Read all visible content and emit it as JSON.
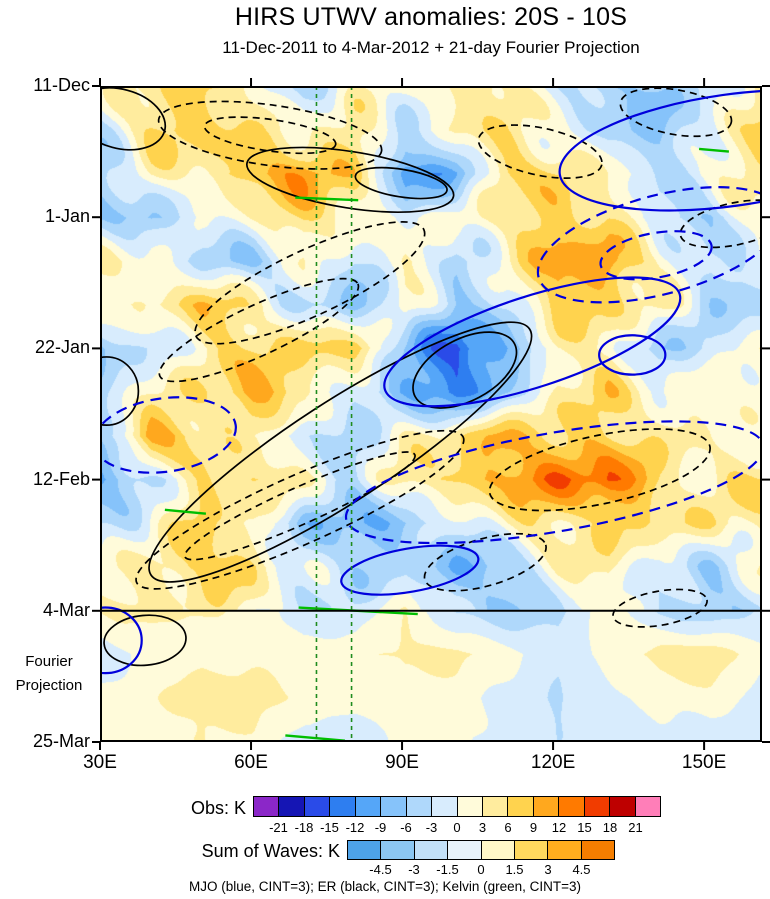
{
  "title": "HIRS UTWV anomalies: 20S - 10S",
  "subtitle": "11-Dec-2011 to 4-Mar-2012 + 21-day Fourier Projection",
  "caption": "MJO (blue, CINT=3); ER (black, CINT=3); Kelvin (green, CINT=3)",
  "axes": {
    "x": {
      "range_degE": [
        30,
        161.5
      ],
      "ticks": [
        {
          "value": 30,
          "label": "30E"
        },
        {
          "value": 60,
          "label": "60E"
        },
        {
          "value": 90,
          "label": "90E"
        },
        {
          "value": 120,
          "label": "120E"
        },
        {
          "value": 150,
          "label": "150E"
        }
      ]
    },
    "y": {
      "range_days": [
        0,
        105
      ],
      "ticks": [
        {
          "day": 0,
          "label": "11-Dec"
        },
        {
          "day": 21,
          "label": "1-Jan"
        },
        {
          "day": 42,
          "label": "22-Jan"
        },
        {
          "day": 63,
          "label": "12-Feb"
        },
        {
          "day": 84,
          "label": "4-Mar"
        },
        {
          "day": 105,
          "label": "25-Mar"
        }
      ]
    },
    "projection_label_lines": [
      "Fourier",
      "Projection"
    ]
  },
  "colorbars": {
    "obs": {
      "label": "Obs: K",
      "tick_labels": [
        "-21",
        "-18",
        "-15",
        "-12",
        "-9",
        "-6",
        "-3",
        "0",
        "3",
        "6",
        "9",
        "12",
        "15",
        "18",
        "21"
      ],
      "colors": [
        "#8B27C8",
        "#1515B4",
        "#2A4BE8",
        "#2E7EF0",
        "#55A6F8",
        "#86C3FA",
        "#AFD8FB",
        "#D8ECFD",
        "#FFFBDA",
        "#FFEC9E",
        "#FFD34E",
        "#FFA81E",
        "#FF7A00",
        "#F13C00",
        "#BE0000",
        "#FF7EB8"
      ]
    },
    "waves": {
      "label": "Sum of Waves: K",
      "tick_labels": [
        "-4.5",
        "-3",
        "-1.5",
        "0",
        "1.5",
        "3",
        "4.5"
      ],
      "colors": [
        "#4DA2E8",
        "#8CC7F2",
        "#C2E0F8",
        "#E8F3FB",
        "#FFF7C8",
        "#FFD95E",
        "#FFAE1E",
        "#F57E00"
      ]
    }
  },
  "chart_data": {
    "type": "heatmap",
    "units": "K",
    "fill_levels_step_K": 3,
    "fill_range_K": [
      -21,
      21
    ],
    "observed_through_day": 84,
    "x_lons_degE": [
      30,
      40,
      50,
      60,
      70,
      80,
      90,
      100,
      110,
      120,
      130,
      140,
      150,
      160
    ],
    "y_days_from_11Dec2011": [
      0,
      7,
      14,
      21,
      28,
      35,
      42,
      49,
      56,
      63,
      70,
      77,
      84,
      91,
      98,
      105
    ],
    "values_K": [
      [
        1,
        4,
        8,
        2,
        -4,
        0,
        2,
        3,
        6,
        -2,
        -7,
        -5,
        -4,
        7
      ],
      [
        -3,
        6,
        9,
        4,
        2,
        6,
        -4,
        4,
        4,
        2,
        -5,
        -6,
        -2,
        8
      ],
      [
        -5,
        2,
        4,
        9,
        11,
        8,
        -13,
        -8,
        6,
        7,
        2,
        -4,
        2,
        4
      ],
      [
        -4,
        -6,
        -2,
        3,
        6,
        4,
        -2,
        2,
        4,
        8,
        6,
        -4,
        -5,
        2
      ],
      [
        2,
        3,
        -5,
        -6,
        2,
        -4,
        4,
        -5,
        3,
        10,
        12,
        2,
        -3,
        -2
      ],
      [
        3,
        2,
        9,
        4,
        -3,
        -8,
        2,
        -6,
        -2,
        8,
        7,
        3,
        -4,
        -4
      ],
      [
        -8,
        -2,
        3,
        6,
        7,
        8,
        -6,
        -18,
        -8,
        2,
        4,
        -6,
        -4,
        3
      ],
      [
        -4,
        2,
        6,
        10,
        6,
        -4,
        -8,
        -14,
        -6,
        4,
        6,
        2,
        2,
        4
      ],
      [
        -4,
        10,
        6,
        2,
        -2,
        -4,
        2,
        6,
        8,
        8,
        6,
        5,
        2,
        -2
      ],
      [
        -9,
        -4,
        5,
        8,
        2,
        -3,
        4,
        8,
        10,
        14,
        15,
        6,
        3,
        7
      ],
      [
        -5,
        2,
        6,
        3,
        -7,
        -8,
        -7,
        -2,
        3,
        5,
        7,
        4,
        6,
        3
      ],
      [
        2,
        4,
        8,
        6,
        -2,
        -5,
        -3,
        -9,
        -6,
        2,
        5,
        -2,
        -5,
        2
      ],
      [
        3,
        4,
        3,
        2,
        -2,
        -3,
        3,
        -4,
        -5,
        -4,
        2,
        -4,
        -6,
        -2
      ],
      [
        -2,
        1,
        2,
        1,
        1,
        2,
        4,
        4,
        1,
        -2,
        1,
        5,
        5,
        1
      ],
      [
        1,
        2,
        5,
        5,
        2,
        1,
        2,
        1,
        -1,
        -3,
        -1,
        1,
        2,
        -1
      ],
      [
        1,
        1,
        3,
        2,
        -2,
        -2,
        1,
        1,
        -2,
        -3,
        -1,
        -1,
        -2,
        -3
      ]
    ],
    "overlays": {
      "wave_colors": {
        "MJO": "#0000DC",
        "ER": "#000000",
        "Kelvin": "#00BE00",
        "kelvin_band_line": "#1E8C1E"
      },
      "projection_divider_fy": 0.8,
      "kelvin_band_vlines_fx": [
        0.327,
        0.38
      ],
      "contours": [
        {
          "wave": "ER",
          "style": "solid",
          "cx": 0.378,
          "cy": 0.143,
          "rx": 0.158,
          "ry": 0.043,
          "rot": 9
        },
        {
          "wave": "ER",
          "style": "solid",
          "cx": 0.455,
          "cy": 0.148,
          "rx": 0.07,
          "ry": 0.021,
          "rot": 9
        },
        {
          "wave": "ER",
          "style": "solid",
          "cx": 0.363,
          "cy": 0.558,
          "rx": 0.341,
          "ry": 0.076,
          "rot": -33
        },
        {
          "wave": "ER",
          "style": "solid",
          "cx": 0.551,
          "cy": 0.433,
          "rx": 0.085,
          "ry": 0.047,
          "rot": -28
        },
        {
          "wave": "ER",
          "style": "solid",
          "cx": 0.01,
          "cy": 0.465,
          "rx": 0.048,
          "ry": 0.052,
          "rot": 0
        },
        {
          "wave": "ER",
          "style": "solid",
          "cx": 0.068,
          "cy": 0.845,
          "rx": 0.062,
          "ry": 0.038,
          "rot": -5
        },
        {
          "wave": "ER",
          "style": "solid",
          "cx": 0.03,
          "cy": 0.05,
          "rx": 0.07,
          "ry": 0.045,
          "rot": 15
        },
        {
          "wave": "ER",
          "style": "dashed",
          "cx": 0.257,
          "cy": 0.075,
          "rx": 0.17,
          "ry": 0.046,
          "rot": 8
        },
        {
          "wave": "ER",
          "style": "dashed",
          "cx": 0.257,
          "cy": 0.075,
          "rx": 0.1,
          "ry": 0.024,
          "rot": 8
        },
        {
          "wave": "ER",
          "style": "dashed",
          "cx": 0.665,
          "cy": 0.1,
          "rx": 0.095,
          "ry": 0.036,
          "rot": 12
        },
        {
          "wave": "ER",
          "style": "dashed",
          "cx": 0.317,
          "cy": 0.3,
          "rx": 0.19,
          "ry": 0.05,
          "rot": -25
        },
        {
          "wave": "ER",
          "style": "dashed",
          "cx": 0.24,
          "cy": 0.372,
          "rx": 0.165,
          "ry": 0.038,
          "rot": -25
        },
        {
          "wave": "ER",
          "style": "dashed",
          "cx": 0.302,
          "cy": 0.646,
          "rx": 0.27,
          "ry": 0.052,
          "rot": -24
        },
        {
          "wave": "ER",
          "style": "dashed",
          "cx": 0.302,
          "cy": 0.64,
          "rx": 0.19,
          "ry": 0.028,
          "rot": -24
        },
        {
          "wave": "ER",
          "style": "dashed",
          "cx": 0.755,
          "cy": 0.585,
          "rx": 0.17,
          "ry": 0.052,
          "rot": -12
        },
        {
          "wave": "ER",
          "style": "dashed",
          "cx": 0.582,
          "cy": 0.726,
          "rx": 0.095,
          "ry": 0.036,
          "rot": -16
        },
        {
          "wave": "ER",
          "style": "dashed",
          "cx": 0.846,
          "cy": 0.796,
          "rx": 0.072,
          "ry": 0.026,
          "rot": -10
        },
        {
          "wave": "ER",
          "style": "dashed",
          "cx": 0.96,
          "cy": 0.21,
          "rx": 0.085,
          "ry": 0.032,
          "rot": -12
        },
        {
          "wave": "ER",
          "style": "dashed",
          "cx": 0.87,
          "cy": 0.04,
          "rx": 0.085,
          "ry": 0.034,
          "rot": 10
        },
        {
          "wave": "MJO",
          "style": "solid",
          "cx": 0.952,
          "cy": 0.098,
          "rx": 0.26,
          "ry": 0.085,
          "rot": -8
        },
        {
          "wave": "MJO",
          "style": "solid",
          "cx": 0.653,
          "cy": 0.39,
          "rx": 0.234,
          "ry": 0.069,
          "rot": -18
        },
        {
          "wave": "MJO",
          "style": "solid",
          "cx": 0.804,
          "cy": 0.41,
          "rx": 0.05,
          "ry": 0.03,
          "rot": 0
        },
        {
          "wave": "MJO",
          "style": "solid",
          "cx": 0.468,
          "cy": 0.738,
          "rx": 0.105,
          "ry": 0.033,
          "rot": -10
        },
        {
          "wave": "MJO",
          "style": "solid",
          "cx": 0.008,
          "cy": 0.845,
          "rx": 0.055,
          "ry": 0.05,
          "rot": 0
        },
        {
          "wave": "MJO",
          "style": "dashed",
          "cx": 0.846,
          "cy": 0.242,
          "rx": 0.19,
          "ry": 0.075,
          "rot": -15
        },
        {
          "wave": "MJO",
          "style": "dashed",
          "cx": 0.84,
          "cy": 0.258,
          "rx": 0.085,
          "ry": 0.034,
          "rot": -10
        },
        {
          "wave": "MJO",
          "style": "dashed",
          "cx": 0.098,
          "cy": 0.532,
          "rx": 0.108,
          "ry": 0.056,
          "rot": -8
        },
        {
          "wave": "MJO",
          "style": "dashed",
          "cx": 0.687,
          "cy": 0.604,
          "rx": 0.32,
          "ry": 0.075,
          "rot": -10
        }
      ],
      "kelvin_segments": [
        {
          "x1": 0.295,
          "y1": 0.17,
          "x2": 0.39,
          "y2": 0.174
        },
        {
          "x1": 0.098,
          "y1": 0.646,
          "x2": 0.16,
          "y2": 0.652
        },
        {
          "x1": 0.3,
          "y1": 0.795,
          "x2": 0.48,
          "y2": 0.805
        },
        {
          "x1": 0.905,
          "y1": 0.096,
          "x2": 0.95,
          "y2": 0.1
        },
        {
          "x1": 0.28,
          "y1": 0.99,
          "x2": 0.37,
          "y2": 0.998
        }
      ]
    }
  }
}
